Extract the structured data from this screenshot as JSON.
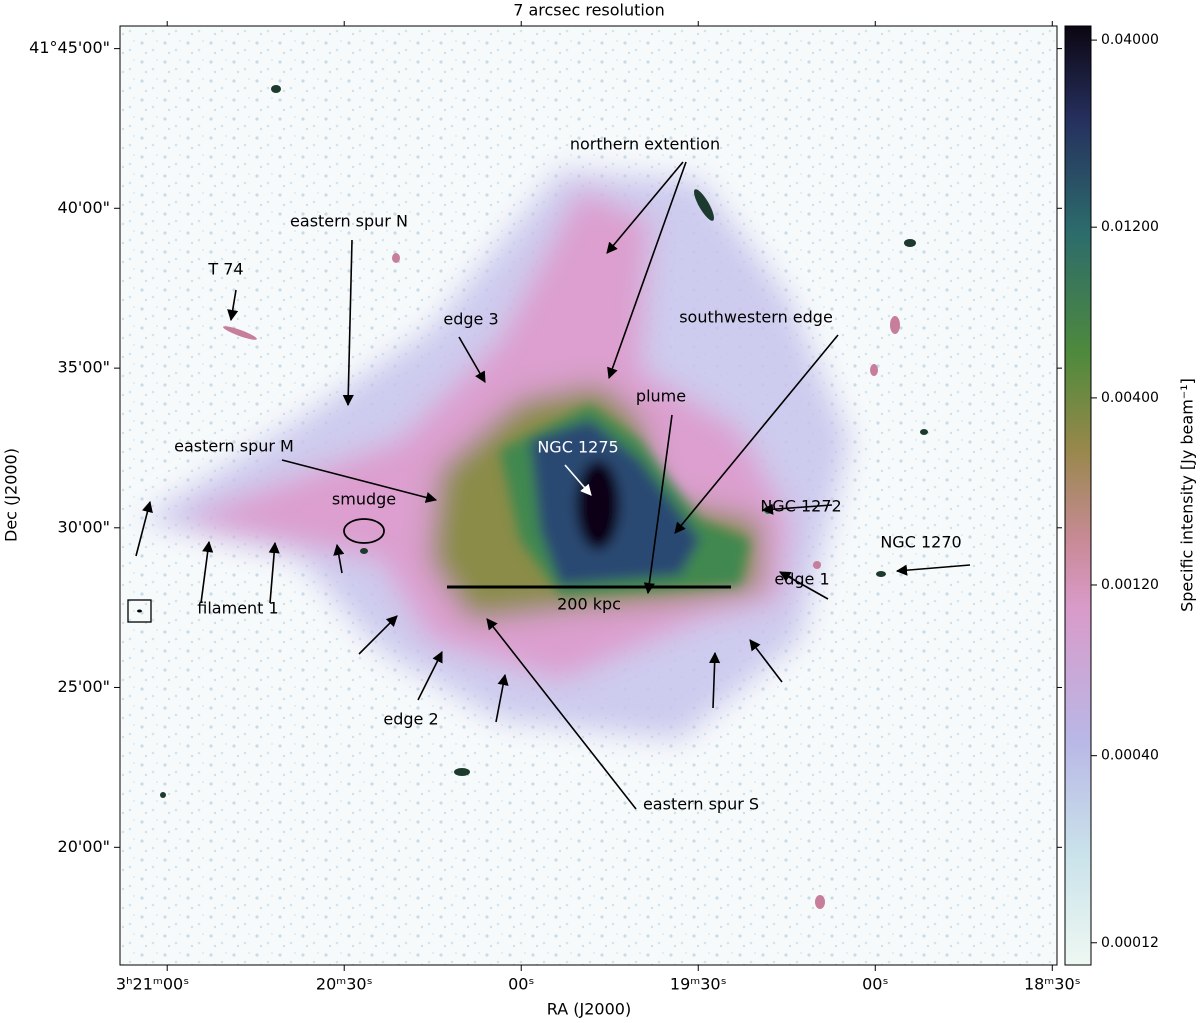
{
  "chart_data": {
    "type": "image",
    "title": "7 arcsec resolution",
    "x_label": "RA (J2000)",
    "y_label": "Dec (J2000)",
    "xlim": [
      12068,
      11909.2
    ],
    "xticks": [
      {
        "value": 12060,
        "label": "3ʰ21ᵐ00ˢ"
      },
      {
        "value": 12030,
        "label": "20ᵐ30ˢ"
      },
      {
        "value": 12000,
        "label": "00ˢ"
      },
      {
        "value": 11970,
        "label": "19ᵐ30ˢ"
      },
      {
        "value": 11940,
        "label": "00ˢ"
      },
      {
        "value": 11910,
        "label": "18ᵐ30ˢ"
      }
    ],
    "ylim": [
      41.2719,
      41.7618
    ],
    "yticks": [
      {
        "value": 41.75,
        "label": "41°45'00\""
      },
      {
        "value": 41.6667,
        "label": "40'00\""
      },
      {
        "value": 41.5833,
        "label": "35'00\""
      },
      {
        "value": 41.5,
        "label": "30'00\""
      },
      {
        "value": 41.4167,
        "label": "25'00\""
      },
      {
        "value": 41.3333,
        "label": "20'00\""
      }
    ],
    "colorbar": {
      "label": "Specific intensity [Jy beam⁻¹]",
      "scale": "log",
      "lim": [
        0.000104,
        0.0438
      ],
      "ticks": [
        0.00012,
        {
          "value": 0.0004,
          "label": "0.00040"
        },
        {
          "value": 0.0012,
          "label": "0.00120"
        },
        {
          "value": 0.004,
          "label": "0.00400"
        },
        {
          "value": 0.012,
          "label": "0.01200"
        },
        {
          "value": 0.04,
          "label": "0.04000"
        }
      ]
    },
    "annotations": [
      "northern extention",
      "eastern spur N",
      "T 74",
      "edge 3",
      "southwestern edge",
      "plume",
      "eastern spur M",
      "NGC 1275",
      "smudge",
      "NGC 1272",
      "NGC 1270",
      "edge 1",
      "filament 1",
      "edge 2",
      "eastern spur S"
    ],
    "scale_bar": "200 kpc"
  }
}
